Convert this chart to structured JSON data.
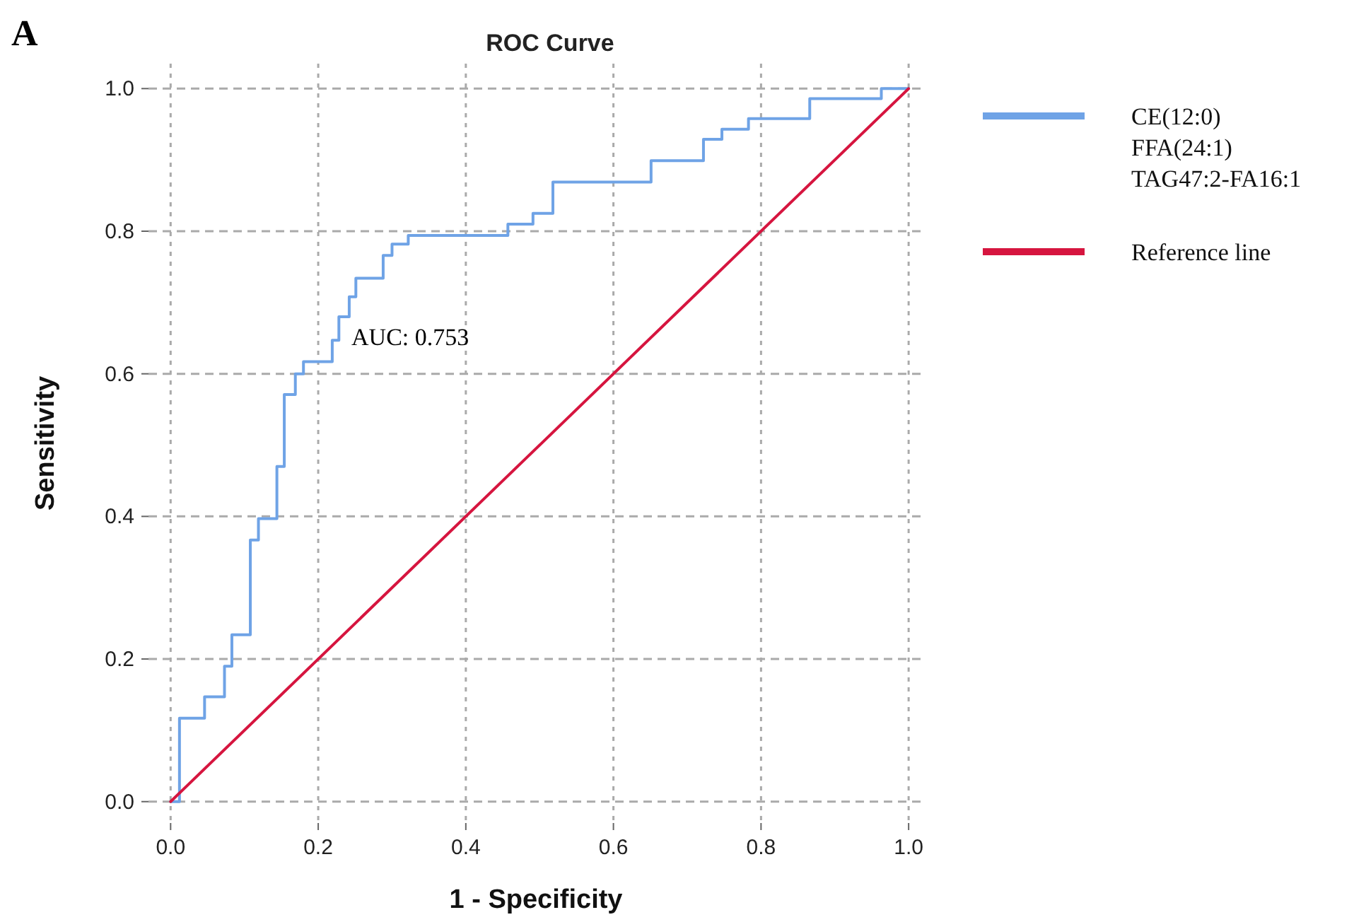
{
  "chart_data": {
    "type": "step",
    "title": "ROC Curve",
    "xlabel": "1 - Specificity",
    "ylabel": "Sensitivity",
    "annotations": [
      "A",
      "AUC: 0.753"
    ],
    "xlim": [
      -0.03,
      1.02
    ],
    "ylim": [
      -0.03,
      1.035
    ],
    "xticks": [
      {
        "value": 0,
        "label": "0.0"
      },
      {
        "value": 0.2,
        "label": "0.2"
      },
      {
        "value": 0.4,
        "label": "0.4"
      },
      {
        "value": 0.6,
        "label": "0.6"
      },
      {
        "value": 0.8,
        "label": "0.8"
      },
      {
        "value": 1,
        "label": "1.0"
      }
    ],
    "yticks": [
      {
        "value": 0,
        "label": "0.0"
      },
      {
        "value": 0.2,
        "label": "0.2"
      },
      {
        "value": 0.4,
        "label": "0.4"
      },
      {
        "value": 0.6,
        "label": "0.6"
      },
      {
        "value": 0.8,
        "label": "0.8"
      },
      {
        "value": 1,
        "label": "1.0"
      }
    ],
    "grid": true,
    "legend": "right",
    "marker": "none",
    "series": [
      {
        "name": "CE(12:0)\nFFA(24:1)\nTAG47:2-FA16:1",
        "color": "#6fa3e6",
        "x": [
          0,
          0.012,
          0.046,
          0.073,
          0.083,
          0.108,
          0.119,
          0.144,
          0.154,
          0.169,
          0.18,
          0.219,
          0.228,
          0.242,
          0.251,
          0.288,
          0.3,
          0.322,
          0.457,
          0.491,
          0.518,
          0.651,
          0.722,
          0.747,
          0.783,
          0.866,
          0.963,
          1
        ],
        "values": [
          0,
          0.117,
          0.147,
          0.19,
          0.234,
          0.367,
          0.397,
          0.47,
          0.571,
          0.6,
          0.617,
          0.647,
          0.68,
          0.708,
          0.734,
          0.766,
          0.782,
          0.794,
          0.81,
          0.825,
          0.869,
          0.899,
          0.929,
          0.943,
          0.958,
          0.986,
          1,
          1
        ]
      },
      {
        "name": "Reference line",
        "type": "line",
        "color": "#d6153f",
        "x": [
          0,
          1
        ],
        "values": [
          0,
          1
        ]
      }
    ]
  }
}
